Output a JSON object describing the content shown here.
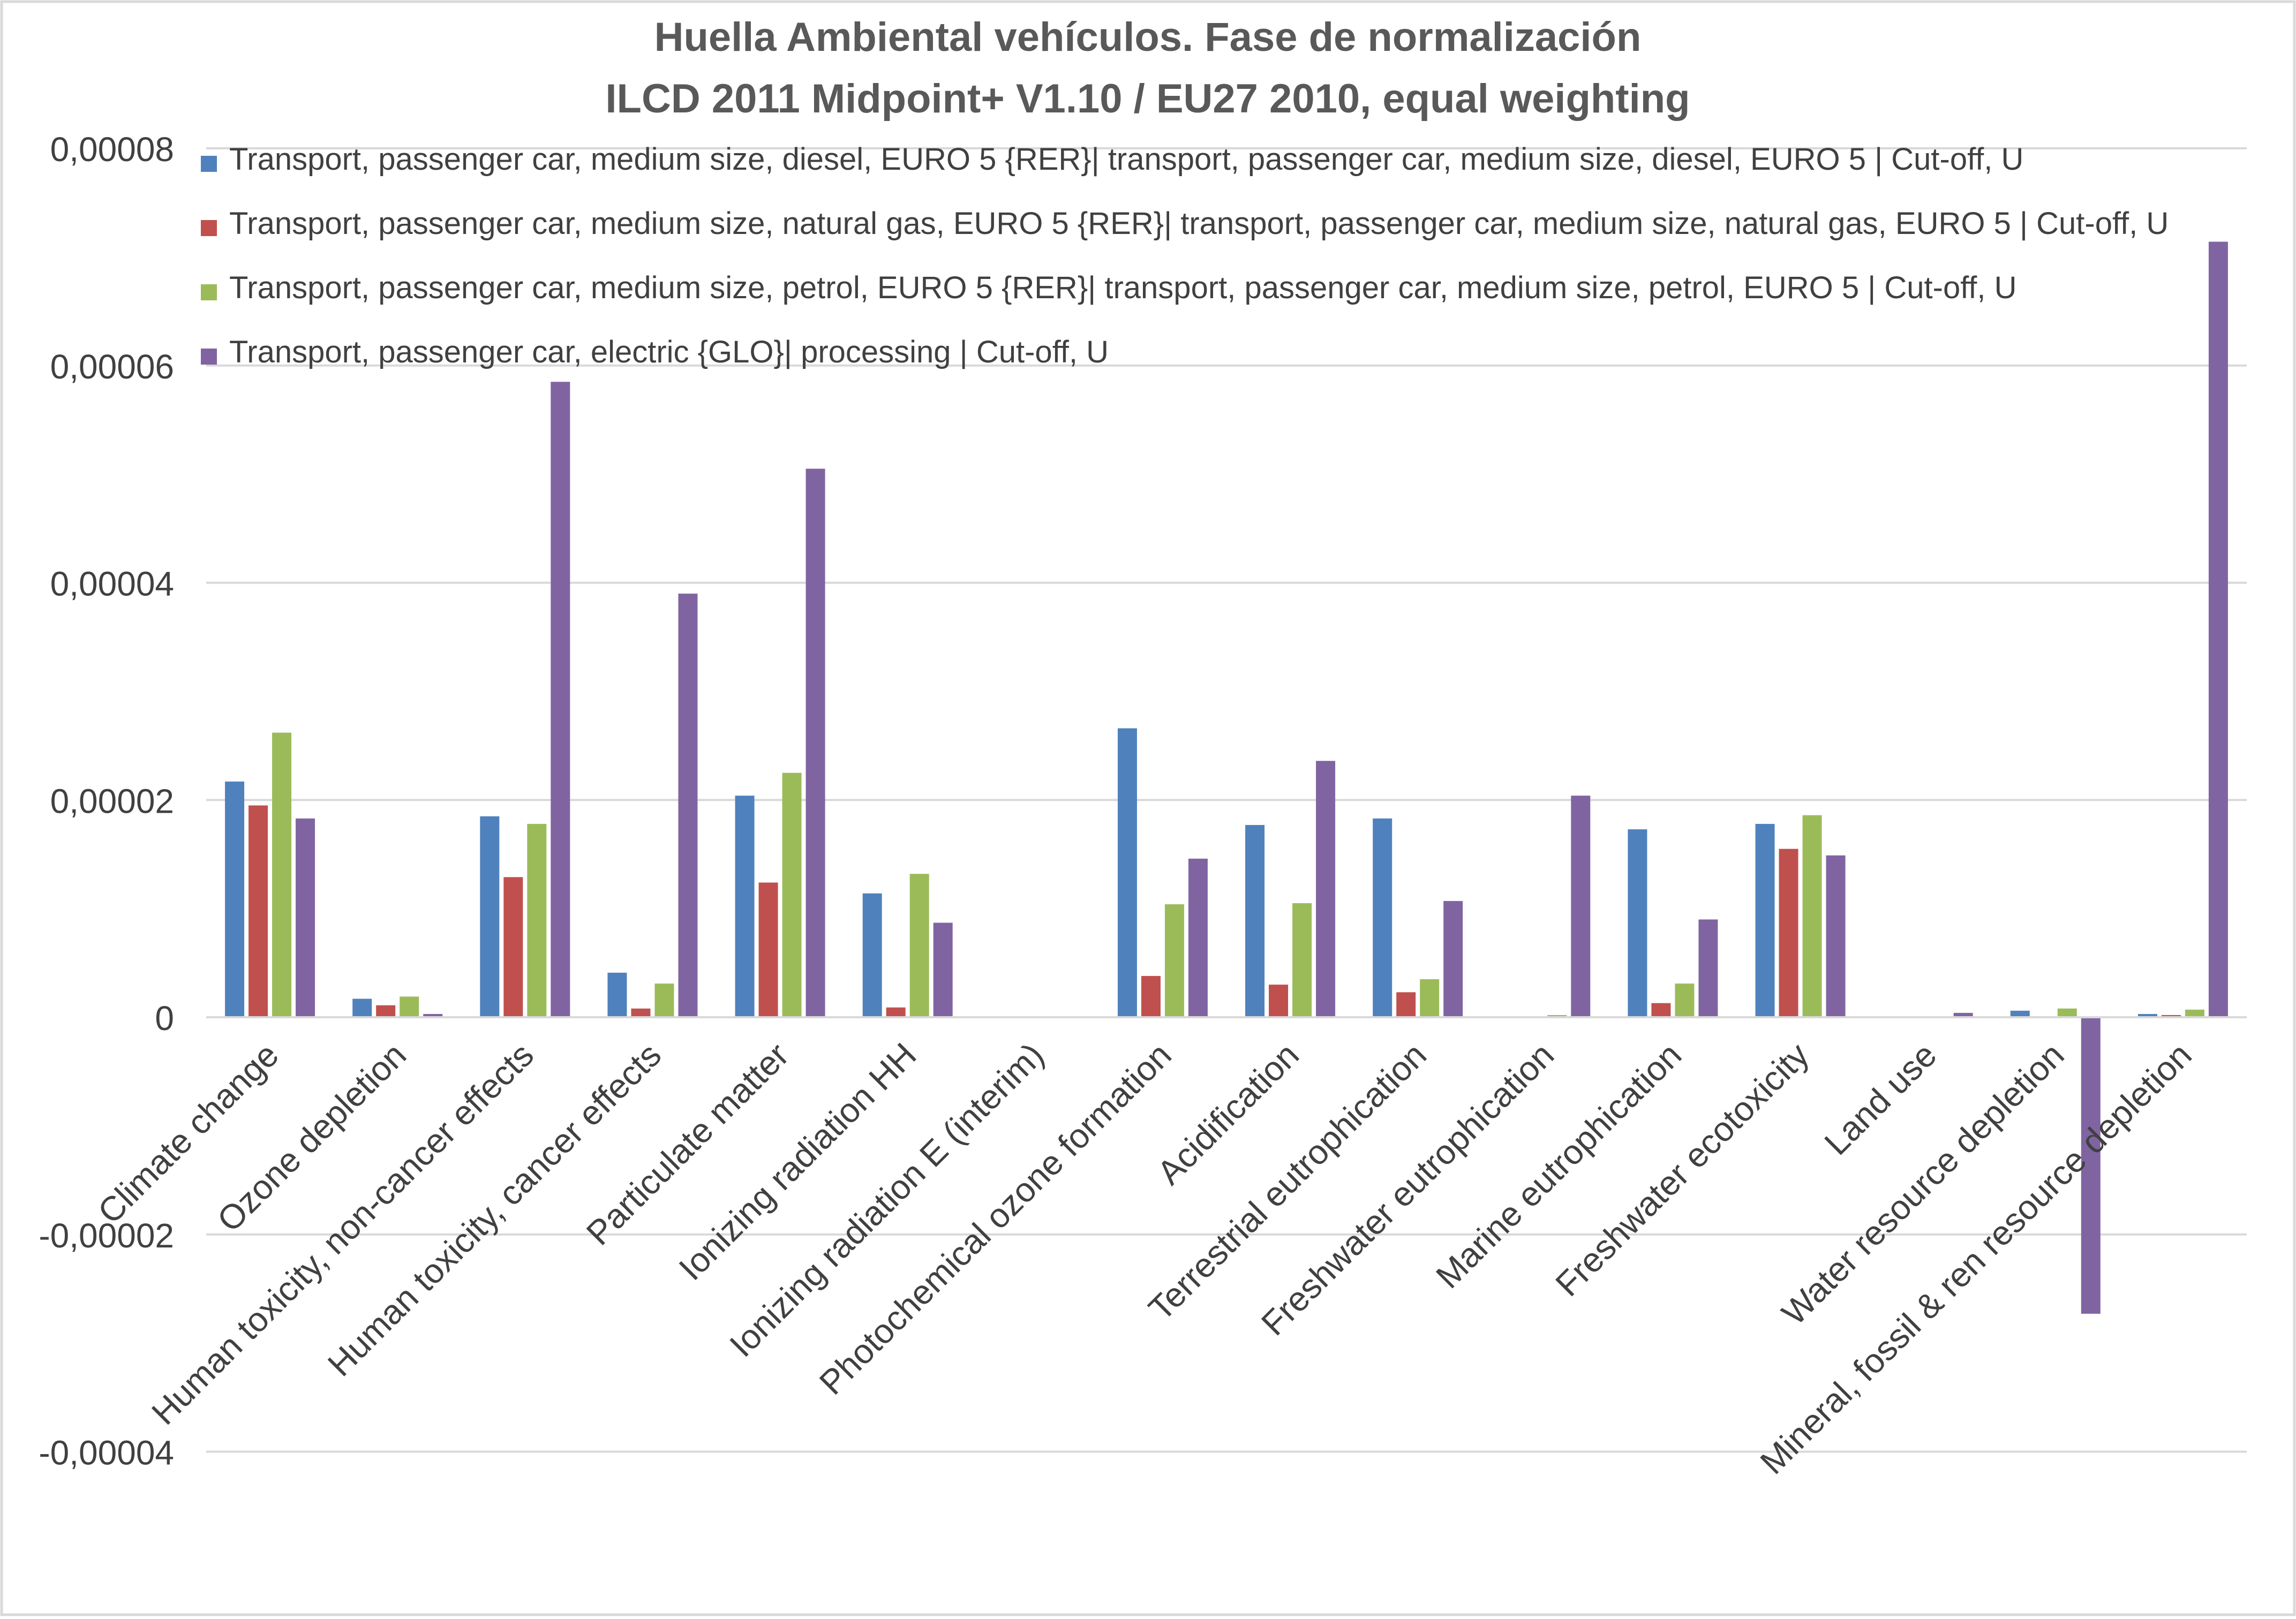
{
  "chart_data": {
    "type": "bar",
    "title": "Huella Ambiental vehículos. Fase de normalización",
    "subtitle": "ILCD 2011 Midpoint+ V1.10 / EU27 2010, equal weighting",
    "xlabel": "",
    "ylabel": "",
    "ylim": [
      -4e-05,
      8e-05
    ],
    "yticks": [
      -4e-05,
      -2e-05,
      0,
      2e-05,
      4e-05,
      6e-05,
      8e-05
    ],
    "ytick_labels": [
      "-0,00004",
      "-0,00002",
      "0",
      "0,00002",
      "0,00004",
      "0,00006",
      "0,00008"
    ],
    "grid": true,
    "legend_position": "top",
    "categories": [
      "Climate change",
      "Ozone depletion",
      "Human toxicity, non-cancer effects",
      "Human toxicity, cancer effects",
      "Particulate matter",
      "Ionizing radiation HH",
      "Ionizing radiation E (interim)",
      "Photochemical ozone formation",
      "Acidification",
      "Terrestrial eutrophication",
      "Freshwater eutrophication",
      "Marine eutrophication",
      "Freshwater ecotoxicity",
      "Land use",
      "Water resource depletion",
      "Mineral, fossil & ren resource depletion"
    ],
    "series": [
      {
        "name": "Transport, passenger car, medium size, diesel, EURO 5 {RER}| transport, passenger car, medium size, diesel, EURO 5 | Cut-off, U",
        "color": "#4f81bd",
        "values": [
          2.17e-05,
          1.7e-06,
          1.85e-05,
          4.1e-06,
          2.04e-05,
          1.14e-05,
          0,
          2.66e-05,
          1.77e-05,
          1.83e-05,
          0,
          1.73e-05,
          1.78e-05,
          0,
          6e-07,
          3e-07
        ]
      },
      {
        "name": "Transport, passenger car, medium size, natural gas, EURO 5 {RER}| transport, passenger car, medium size, natural gas, EURO 5 | Cut-off, U",
        "color": "#c0504d",
        "values": [
          1.95e-05,
          1.1e-06,
          1.29e-05,
          8e-07,
          1.24e-05,
          9e-07,
          0,
          3.8e-06,
          3e-06,
          2.3e-06,
          0,
          1.3e-06,
          1.55e-05,
          0,
          1e-07,
          2e-07
        ]
      },
      {
        "name": "Transport, passenger car, medium size, petrol, EURO 5 {RER}| transport, passenger car, medium size, petrol, EURO 5 | Cut-off, U",
        "color": "#9bbb59",
        "values": [
          2.62e-05,
          1.9e-06,
          1.78e-05,
          3.1e-06,
          2.25e-05,
          1.32e-05,
          0,
          1.04e-05,
          1.05e-05,
          3.5e-06,
          2e-07,
          3.1e-06,
          1.86e-05,
          0,
          8e-07,
          7e-07
        ]
      },
      {
        "name": "Transport, passenger car, electric {GLO}| processing | Cut-off, U",
        "color": "#8064a2",
        "values": [
          1.83e-05,
          3e-07,
          5.85e-05,
          3.9e-05,
          5.05e-05,
          8.7e-06,
          0,
          1.46e-05,
          2.36e-05,
          1.07e-05,
          2.04e-05,
          9e-06,
          1.49e-05,
          4e-07,
          -2.73e-05,
          7.14e-05
        ]
      }
    ]
  }
}
